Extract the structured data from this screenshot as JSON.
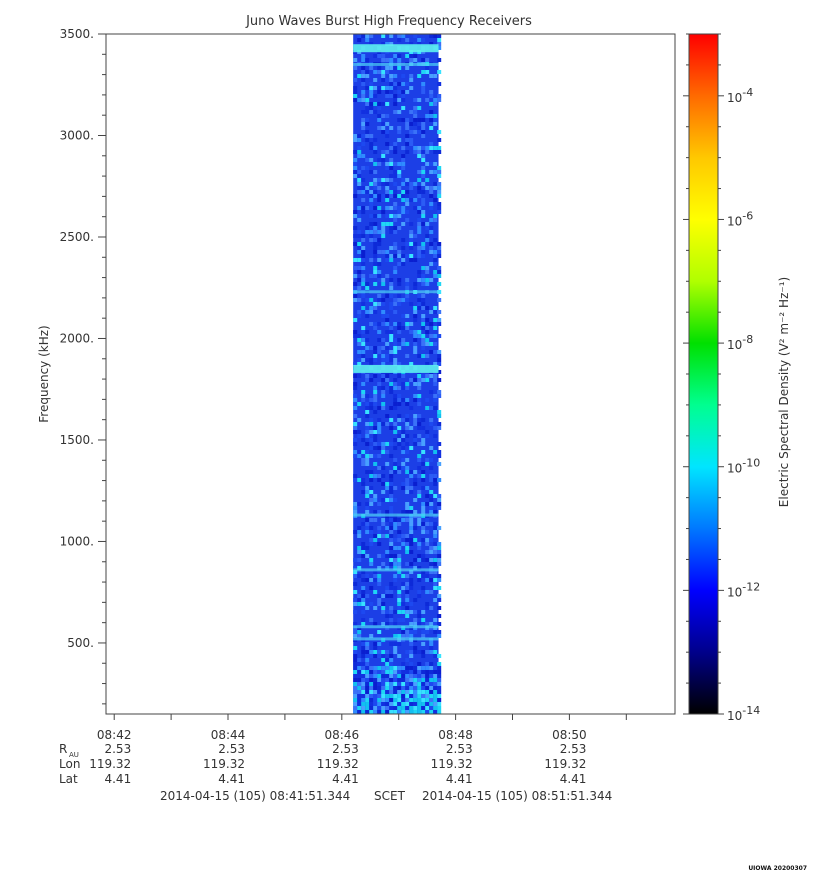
{
  "chart_data": {
    "type": "heatmap",
    "title": "Juno Waves Burst High Frequency Receivers",
    "ylabel": "Frequency (kHz)",
    "ylim": [
      150,
      3500
    ],
    "y_ticks": [
      500,
      1000,
      1500,
      2000,
      2500,
      3000,
      3500
    ],
    "y_tick_labels": [
      "500.",
      "1000.",
      "1500.",
      "2000.",
      "2500.",
      "3000.",
      "3500."
    ],
    "x_range": [
      "08:41:51.344",
      "08:51:51.344"
    ],
    "x_ticks": [
      "08:42",
      "08:44",
      "08:46",
      "08:48",
      "08:50"
    ],
    "data_window": {
      "start": "08:46:12",
      "end": "08:47:42"
    },
    "emission_bands_khz": [
      3430,
      3350,
      2230,
      1850,
      1130,
      860,
      580,
      520
    ],
    "ephemeris": {
      "rows": [
        {
          "label_main": "R",
          "label_sub": "AU",
          "values": [
            "2.53",
            "2.53",
            "2.53",
            "2.53",
            "2.53"
          ]
        },
        {
          "label_main": "Lon",
          "label_sub": "",
          "values": [
            "119.32",
            "119.32",
            "119.32",
            "119.32",
            "119.32"
          ]
        },
        {
          "label_main": "Lat",
          "label_sub": "",
          "values": [
            "4.41",
            "4.41",
            "4.41",
            "4.41",
            "4.41"
          ]
        }
      ]
    },
    "colorbar": {
      "label": "Electric Spectral Density (V² m⁻² Hz⁻¹)",
      "scale": "log",
      "range_exp": [
        -14,
        -3
      ],
      "ticks": [
        {
          "base": "10",
          "exp": "-4",
          "value_exp": -4
        },
        {
          "base": "10",
          "exp": "-6",
          "value_exp": -6
        },
        {
          "base": "10",
          "exp": "-8",
          "value_exp": -8
        },
        {
          "base": "10",
          "exp": "-10",
          "value_exp": -10
        },
        {
          "base": "10",
          "exp": "-12",
          "value_exp": -12
        },
        {
          "base": "10",
          "exp": "-14",
          "value_exp": -14
        }
      ],
      "colors": [
        "#000000",
        "#00008b",
        "#0000ff",
        "#0078ff",
        "#00e5ff",
        "#00ff90",
        "#00e000",
        "#b0ff00",
        "#ffff00",
        "#ffc800",
        "#ff6a00",
        "#ff0000"
      ]
    }
  },
  "footer": {
    "start": "2014-04-15 (105) 08:41:51.344",
    "mid": "SCET",
    "end": "2014-04-15 (105) 08:51:51.344",
    "stamp": "UIOWA 20200307"
  }
}
